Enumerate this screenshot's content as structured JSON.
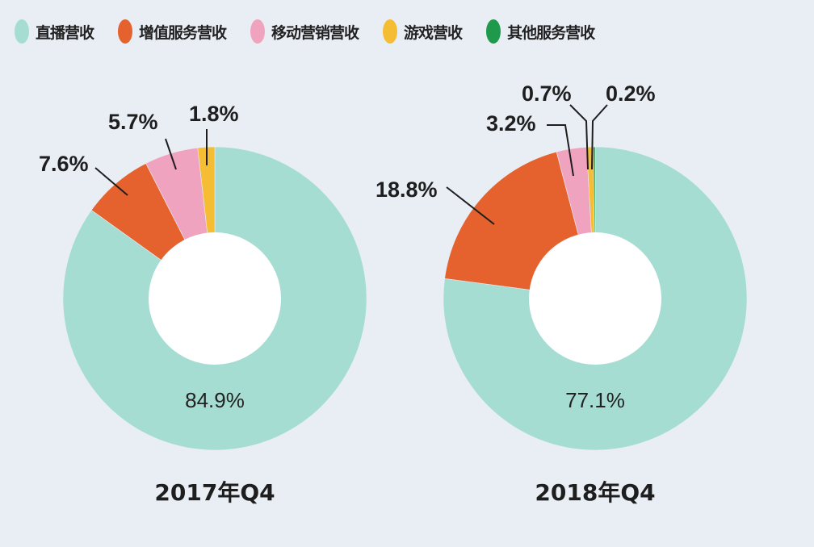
{
  "colors": {
    "background": "#e9eef5",
    "live": "#a6ddd3",
    "vas": "#e5622e",
    "mobile": "#f0a3bf",
    "game": "#f4bd34",
    "other": "#1f9a4c"
  },
  "chart_data": [
    {
      "type": "pie",
      "donut": true,
      "title": "2017年Q4",
      "categories": [
        "直播营收",
        "增值服务营收",
        "移动营销营收",
        "游戏营收"
      ],
      "values": [
        84.9,
        7.6,
        5.7,
        1.8
      ],
      "labels": [
        "84.9%",
        "7.6%",
        "5.7%",
        "1.8%"
      ]
    },
    {
      "type": "pie",
      "donut": true,
      "title": "2018年Q4",
      "categories": [
        "直播营收",
        "增值服务营收",
        "移动营销营收",
        "游戏营收",
        "其他服务营收"
      ],
      "values": [
        77.1,
        18.8,
        3.2,
        0.7,
        0.2
      ],
      "labels": [
        "77.1%",
        "18.8%",
        "3.2%",
        "0.7%",
        "0.2%"
      ]
    }
  ],
  "legend": {
    "placement": "top",
    "items": [
      {
        "label": "直播营收",
        "color": "#a6ddd3"
      },
      {
        "label": "增值服务营收",
        "color": "#e5622e"
      },
      {
        "label": "移动营销营收",
        "color": "#f0a3bf"
      },
      {
        "label": "游戏营收",
        "color": "#f4bd34"
      },
      {
        "label": "其他服务营收",
        "color": "#1f9a4c"
      }
    ]
  }
}
